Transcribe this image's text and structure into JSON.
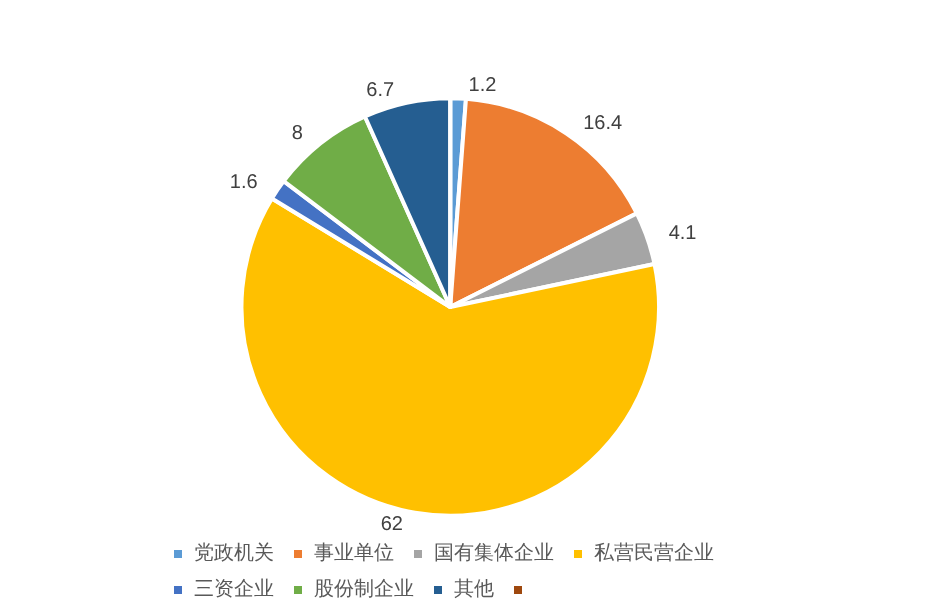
{
  "chart_data": {
    "type": "pie",
    "categories": [
      "党政机关",
      "事业单位",
      "国有集体企业",
      "私营民营企业",
      "三资企业",
      "股份制企业",
      "其他",
      null
    ],
    "values": [
      1.2,
      16.4,
      4.1,
      62,
      1.6,
      8,
      6.7,
      0
    ],
    "colors": [
      "#5b9bd5",
      "#ed7d31",
      "#a5a5a5",
      "#ffc000",
      "#4472c4",
      "#70ad47",
      "#255e91",
      "#9e480e"
    ],
    "data_labels": true,
    "legend": "bottom"
  }
}
